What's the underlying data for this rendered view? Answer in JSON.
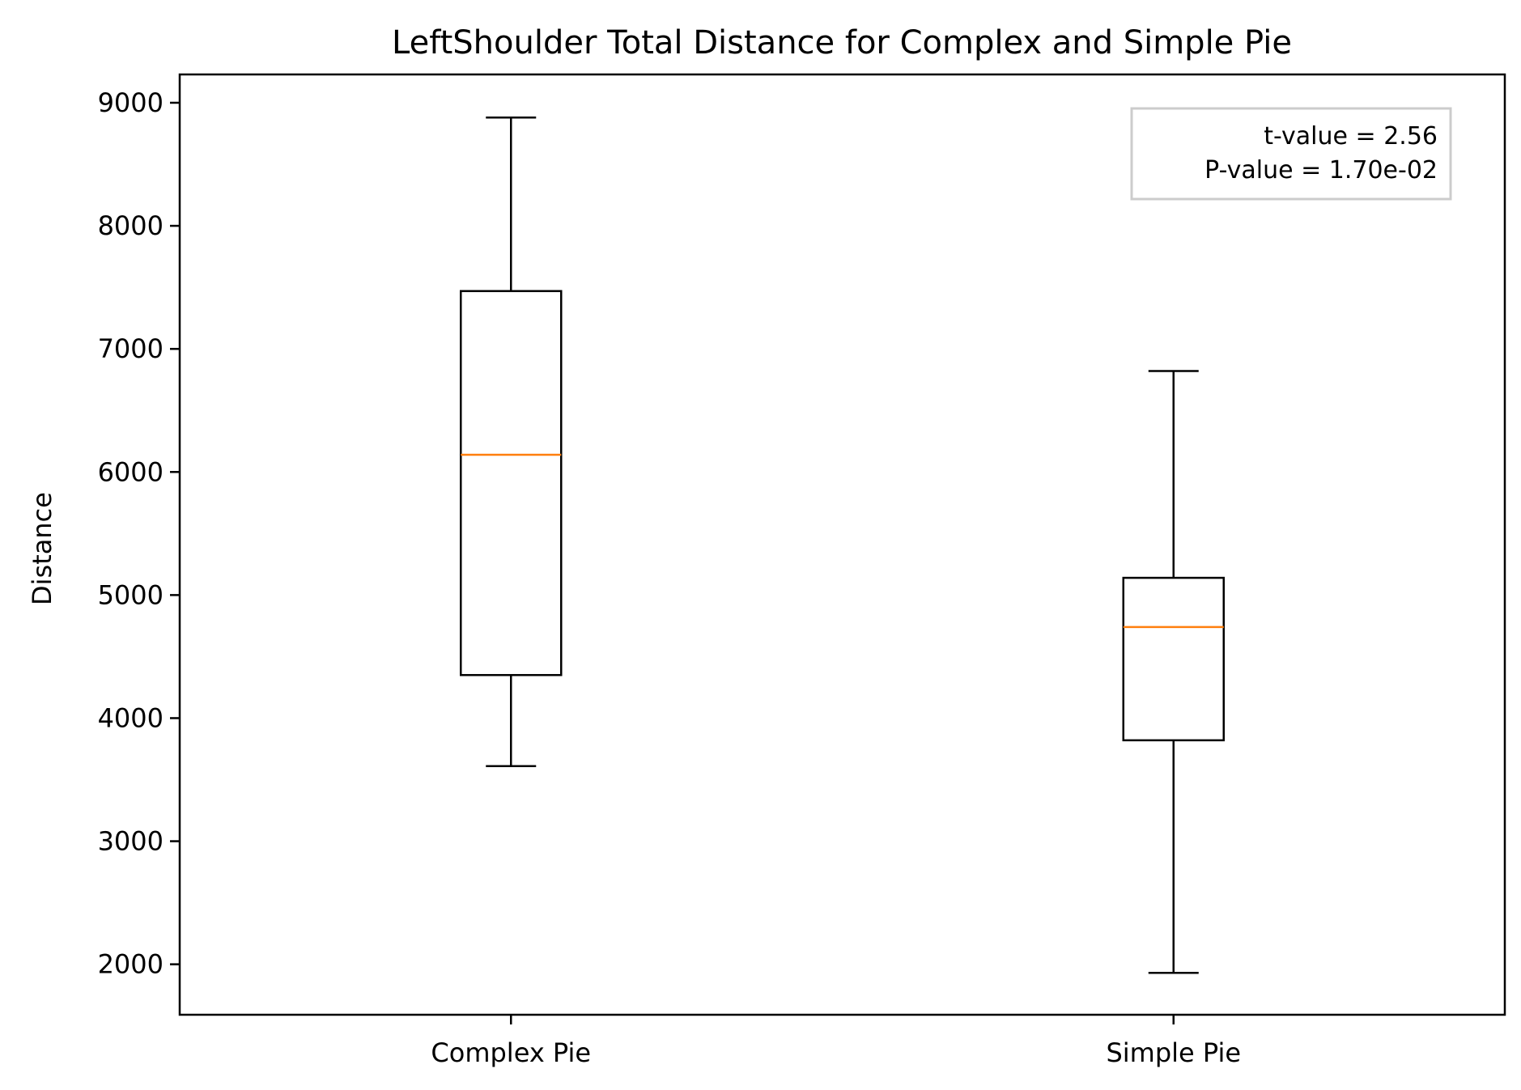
{
  "chart_data": {
    "type": "box",
    "title": "LeftShoulder Total Distance for Complex and Simple Pie",
    "xlabel": "",
    "ylabel": "Distance",
    "categories": [
      "Complex Pie",
      "Simple Pie"
    ],
    "boxes": [
      {
        "name": "Complex Pie",
        "whisker_low": 3610,
        "q1": 4350,
        "median": 6140,
        "q3": 7470,
        "whisker_high": 8880
      },
      {
        "name": "Simple Pie",
        "whisker_low": 1930,
        "q1": 3820,
        "median": 4740,
        "q3": 5140,
        "whisker_high": 6820
      }
    ],
    "ylim": [
      1590,
      9230
    ],
    "yticks": [
      2000,
      3000,
      4000,
      5000,
      6000,
      7000,
      8000,
      9000
    ],
    "ytick_labels": [
      "2000",
      "3000",
      "4000",
      "5000",
      "6000",
      "7000",
      "8000",
      "9000"
    ],
    "grid": false,
    "annotation": {
      "placement": "top-right",
      "lines": [
        "t-value = 2.56",
        "P-value = 1.70e-02"
      ]
    },
    "colors": {
      "box": "#000000",
      "median": "#ff7f0e",
      "annotation_border": "#cccccc"
    }
  }
}
